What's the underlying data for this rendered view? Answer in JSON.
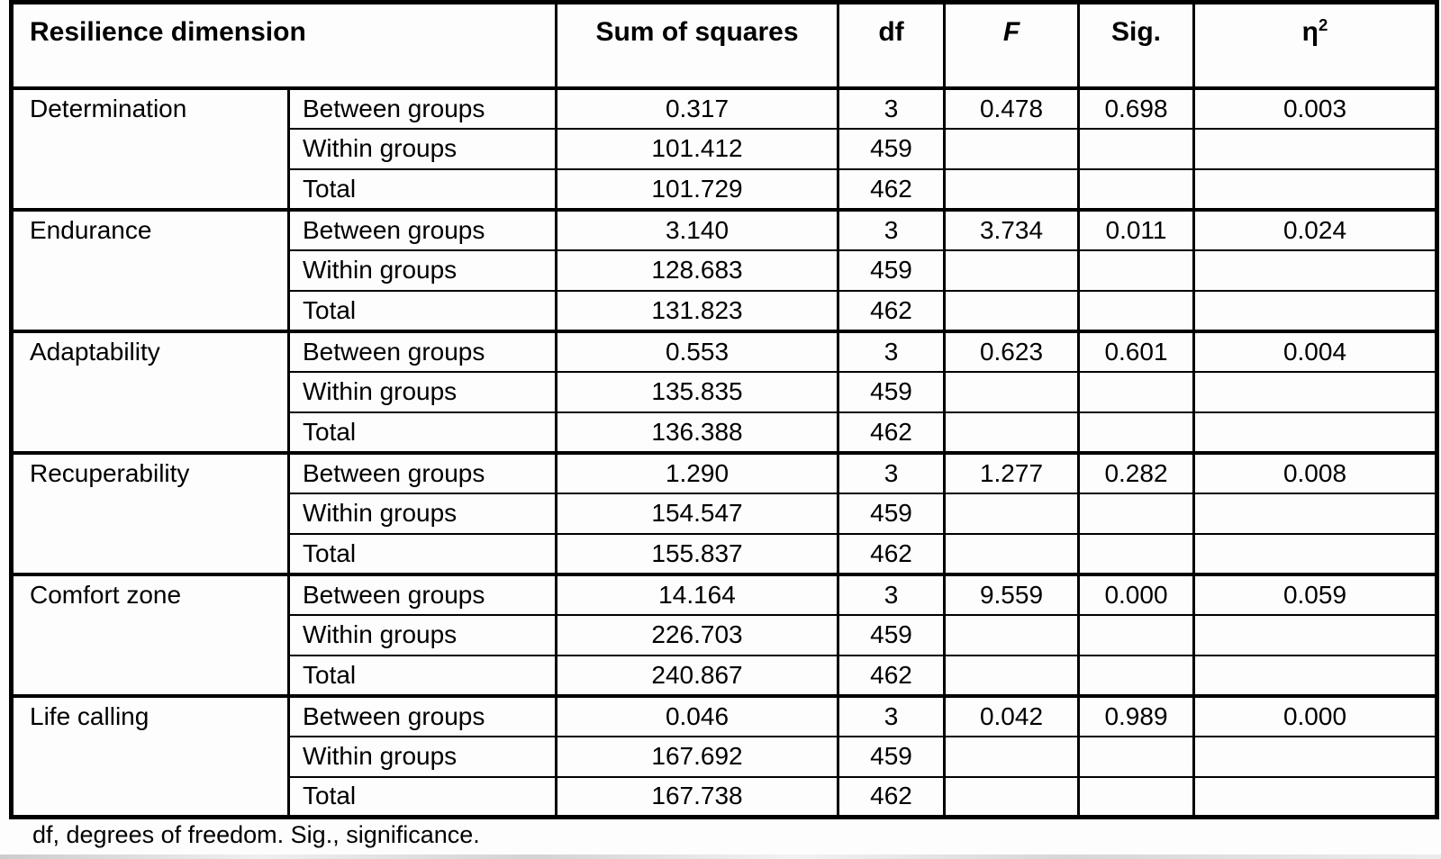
{
  "table": {
    "headers": [
      "Resilience dimension",
      "Sum of squares",
      "df",
      "F",
      "Sig."
    ],
    "eta_header": {
      "symbol": "η",
      "exponent": "2"
    },
    "groups": [
      {
        "dimension": "Determination",
        "rows": [
          {
            "label": "Between groups",
            "ss": "0.317",
            "df": "3",
            "F": "0.478",
            "sig": "0.698",
            "eta2": "0.003"
          },
          {
            "label": "Within groups",
            "ss": "101.412",
            "df": "459",
            "F": "",
            "sig": "",
            "eta2": ""
          },
          {
            "label": "Total",
            "ss": "101.729",
            "df": "462",
            "F": "",
            "sig": "",
            "eta2": ""
          }
        ]
      },
      {
        "dimension": "Endurance",
        "rows": [
          {
            "label": "Between groups",
            "ss": "3.140",
            "df": "3",
            "F": "3.734",
            "sig": "0.011",
            "eta2": "0.024"
          },
          {
            "label": "Within groups",
            "ss": "128.683",
            "df": "459",
            "F": "",
            "sig": "",
            "eta2": ""
          },
          {
            "label": "Total",
            "ss": "131.823",
            "df": "462",
            "F": "",
            "sig": "",
            "eta2": ""
          }
        ]
      },
      {
        "dimension": "Adaptability",
        "rows": [
          {
            "label": "Between groups",
            "ss": "0.553",
            "df": "3",
            "F": "0.623",
            "sig": "0.601",
            "eta2": "0.004"
          },
          {
            "label": "Within groups",
            "ss": "135.835",
            "df": "459",
            "F": "",
            "sig": "",
            "eta2": ""
          },
          {
            "label": "Total",
            "ss": "136.388",
            "df": "462",
            "F": "",
            "sig": "",
            "eta2": ""
          }
        ]
      },
      {
        "dimension": "Recuperability",
        "rows": [
          {
            "label": "Between groups",
            "ss": "1.290",
            "df": "3",
            "F": "1.277",
            "sig": "0.282",
            "eta2": "0.008"
          },
          {
            "label": "Within groups",
            "ss": "154.547",
            "df": "459",
            "F": "",
            "sig": "",
            "eta2": ""
          },
          {
            "label": "Total",
            "ss": "155.837",
            "df": "462",
            "F": "",
            "sig": "",
            "eta2": ""
          }
        ]
      },
      {
        "dimension": "Comfort zone",
        "rows": [
          {
            "label": "Between groups",
            "ss": "14.164",
            "df": "3",
            "F": "9.559",
            "sig": "0.000",
            "eta2": "0.059"
          },
          {
            "label": "Within groups",
            "ss": "226.703",
            "df": "459",
            "F": "",
            "sig": "",
            "eta2": ""
          },
          {
            "label": "Total",
            "ss": "240.867",
            "df": "462",
            "F": "",
            "sig": "",
            "eta2": ""
          }
        ]
      },
      {
        "dimension": "Life calling",
        "rows": [
          {
            "label": "Between groups",
            "ss": "0.046",
            "df": "3",
            "F": "0.042",
            "sig": "0.989",
            "eta2": "0.000"
          },
          {
            "label": "Within groups",
            "ss": "167.692",
            "df": "459",
            "F": "",
            "sig": "",
            "eta2": ""
          },
          {
            "label": "Total",
            "ss": "167.738",
            "df": "462",
            "F": "",
            "sig": "",
            "eta2": ""
          }
        ]
      }
    ]
  },
  "footnote": "df, degrees of freedom. Sig., significance."
}
